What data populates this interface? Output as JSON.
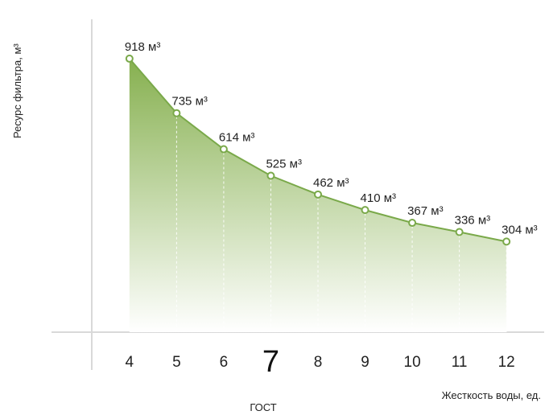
{
  "chart_data": {
    "type": "area",
    "xlabel": "Жесткость воды, ед.",
    "ylabel": "Ресурс фильтра, м³",
    "highlight": {
      "tick": "7",
      "label": "ГОСТ"
    },
    "x_ticks": [
      "4",
      "5",
      "6",
      "7",
      "8",
      "9",
      "10",
      "11",
      "12"
    ],
    "x": [
      4,
      5,
      6,
      7,
      8,
      9,
      10,
      11,
      12
    ],
    "xlim": [
      3.2,
      12.8
    ],
    "series": [
      {
        "x": [
          4,
          5,
          6,
          7,
          8,
          9,
          10,
          11,
          12
        ],
        "values": [
          918,
          735,
          614,
          525,
          462,
          410,
          367,
          336,
          304
        ],
        "labels": [
          "918 м³",
          "735 м³",
          "614 м³",
          "525 м³",
          "462 м³",
          "410 м³",
          "367 м³",
          "336 м³",
          "304 м³"
        ]
      }
    ],
    "ylim": [
      0,
      1050
    ],
    "grid": false,
    "colors": {
      "line": "#7aa94a",
      "fill_top": "#86b04f",
      "fill_bottom": "#ffffff",
      "axis": "#d9d9d9"
    }
  }
}
